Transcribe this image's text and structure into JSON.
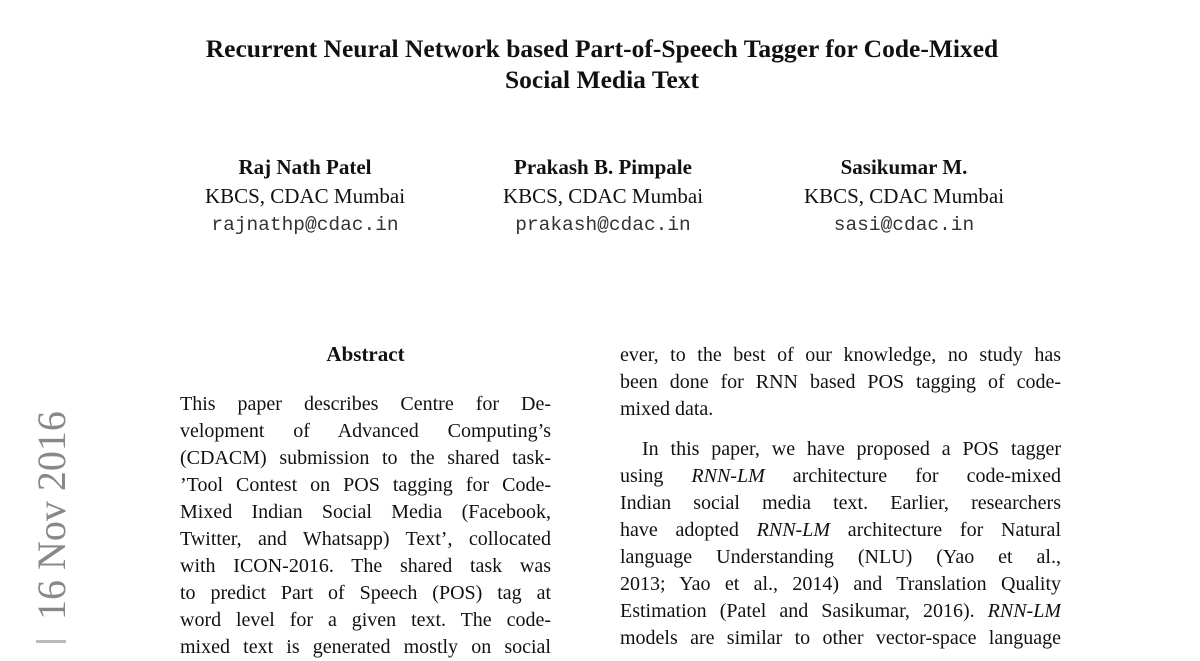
{
  "title_lines": [
    "Recurrent Neural Network based Part-of-Speech Tagger for Code-Mixed",
    "Social Media Text"
  ],
  "authors": [
    {
      "name": "Raj Nath Patel",
      "affiliation": "KBCS, CDAC Mumbai",
      "email": "rajnathp@cdac.in"
    },
    {
      "name": "Prakash B. Pimpale",
      "affiliation": "KBCS, CDAC Mumbai",
      "email": "prakash@cdac.in"
    },
    {
      "name": "Sasikumar M.",
      "affiliation": "KBCS, CDAC Mumbai",
      "email": "sasi@cdac.in"
    }
  ],
  "arxiv_stamp": "16 Nov 2016",
  "abstract": {
    "heading": "Abstract",
    "lines": [
      "This paper describes Centre for De-",
      "velopment of Advanced Computing’s",
      "(CDACM) submission to the shared task-",
      "’Tool Contest on POS tagging for Code-",
      "Mixed Indian Social Media (Facebook,",
      "Twitter, and Whatsapp) Text’, collocated",
      "with ICON-2016.  The shared task was",
      "to predict Part of Speech (POS) tag at",
      "word level for a given text.  The code-",
      "mixed text is generated mostly on social"
    ]
  },
  "right_column": {
    "para1": [
      "ever, to the best of our knowledge, no study has",
      "been done for RNN based POS tagging of code-",
      "mixed data."
    ],
    "para2": [
      [
        "In this paper, we have proposed a POS tagger",
        "",
        ""
      ],
      [
        "using ",
        "RNN-LM",
        " architecture for code-mixed"
      ],
      [
        "Indian social media text.  Earlier, researchers",
        "",
        ""
      ],
      [
        "have adopted ",
        "RNN-LM",
        " architecture for Natural"
      ],
      [
        "language Understanding (NLU) (Yao et al.,",
        "",
        ""
      ],
      [
        "2013; Yao et al., 2014) and Translation Quality",
        "",
        ""
      ],
      [
        "Estimation (Patel and Sasikumar, 2016). ",
        "RNN-LM",
        ""
      ],
      [
        "models are similar to other vector-space language",
        "",
        ""
      ]
    ]
  }
}
